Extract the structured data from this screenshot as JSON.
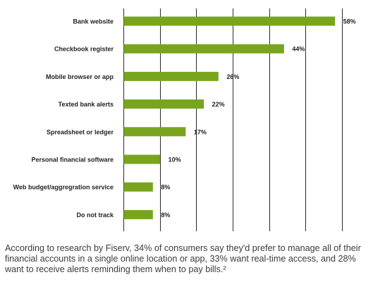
{
  "chart_data": {
    "type": "bar",
    "orientation": "horizontal",
    "categories": [
      "Bank website",
      "Checkbook register",
      "Mobile browser or app",
      "Texted bank alerts",
      "Spreadsheet or ledger",
      "Personal financial software",
      "Web budget/aggregration service",
      "Do not track"
    ],
    "values": [
      58,
      44,
      26,
      22,
      17,
      10,
      8,
      8
    ],
    "value_labels": [
      "58%",
      "44%",
      "26%",
      "22%",
      "17%",
      "10%",
      "8%",
      "8%"
    ],
    "title": "",
    "xlabel": "",
    "ylabel": "",
    "xlim": [
      0,
      60
    ],
    "x_gridlines": [
      0,
      10,
      20,
      30,
      40,
      50,
      60
    ],
    "grid": true,
    "colors": {
      "bar": "#78a51d",
      "grid": "#2b2b2b",
      "label": "#222222"
    }
  },
  "caption": "According to research by Fiserv, 34% of consumers say they'd prefer to manage all of their financial accounts in a single online location or app, 33% want real-time access, and 28% want to receive alerts reminding them when to pay bills.²"
}
